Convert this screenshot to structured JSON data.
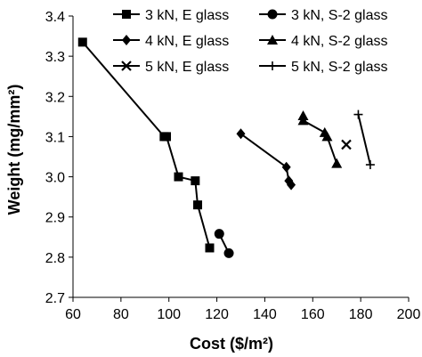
{
  "chart_data": {
    "type": "scatter",
    "title": "",
    "xlabel": "Cost ($/m²)",
    "ylabel": "Weight (mg/mm²)",
    "xlim": [
      60,
      200
    ],
    "ylim": [
      2.7,
      3.4
    ],
    "xticks": [
      60,
      80,
      100,
      120,
      140,
      160,
      180,
      200
    ],
    "yticks": [
      2.7,
      2.8,
      2.9,
      3.0,
      3.1,
      3.2,
      3.3,
      3.4
    ],
    "xtick_labels": [
      "60",
      "80",
      "100",
      "120",
      "140",
      "160",
      "180",
      "200"
    ],
    "ytick_labels": [
      "2.7",
      "2.8",
      "2.9",
      "3.0",
      "3.1",
      "3.2",
      "3.3",
      "3.4"
    ],
    "grid": false,
    "legend_position": "top",
    "series": [
      {
        "name": "3 kN, E glass",
        "marker": "square",
        "points": [
          [
            64,
            3.335
          ],
          [
            98,
            3.1
          ],
          [
            99,
            3.1
          ],
          [
            104,
            3.0
          ],
          [
            111,
            2.99
          ],
          [
            112,
            2.93
          ],
          [
            117,
            2.823
          ]
        ]
      },
      {
        "name": "3 kN, S-2 glass",
        "marker": "circle",
        "points": [
          [
            121,
            2.858
          ],
          [
            125,
            2.81
          ]
        ]
      },
      {
        "name": "4 kN, E glass",
        "marker": "diamond",
        "points": [
          [
            130,
            3.107
          ],
          [
            149,
            3.024
          ],
          [
            150,
            2.99
          ],
          [
            151,
            2.98
          ]
        ]
      },
      {
        "name": "4 kN, S-2 glass",
        "marker": "triangle",
        "points": [
          [
            156,
            3.152
          ],
          [
            156,
            3.14
          ],
          [
            165,
            3.11
          ],
          [
            166,
            3.1
          ],
          [
            170,
            3.033
          ]
        ]
      },
      {
        "name": "5 kN, E glass",
        "marker": "x",
        "points": [
          [
            174,
            3.08
          ]
        ]
      },
      {
        "name": "5 kN, S-2 glass",
        "marker": "plus",
        "points": [
          [
            179,
            3.155
          ],
          [
            184,
            3.03
          ]
        ]
      }
    ]
  }
}
